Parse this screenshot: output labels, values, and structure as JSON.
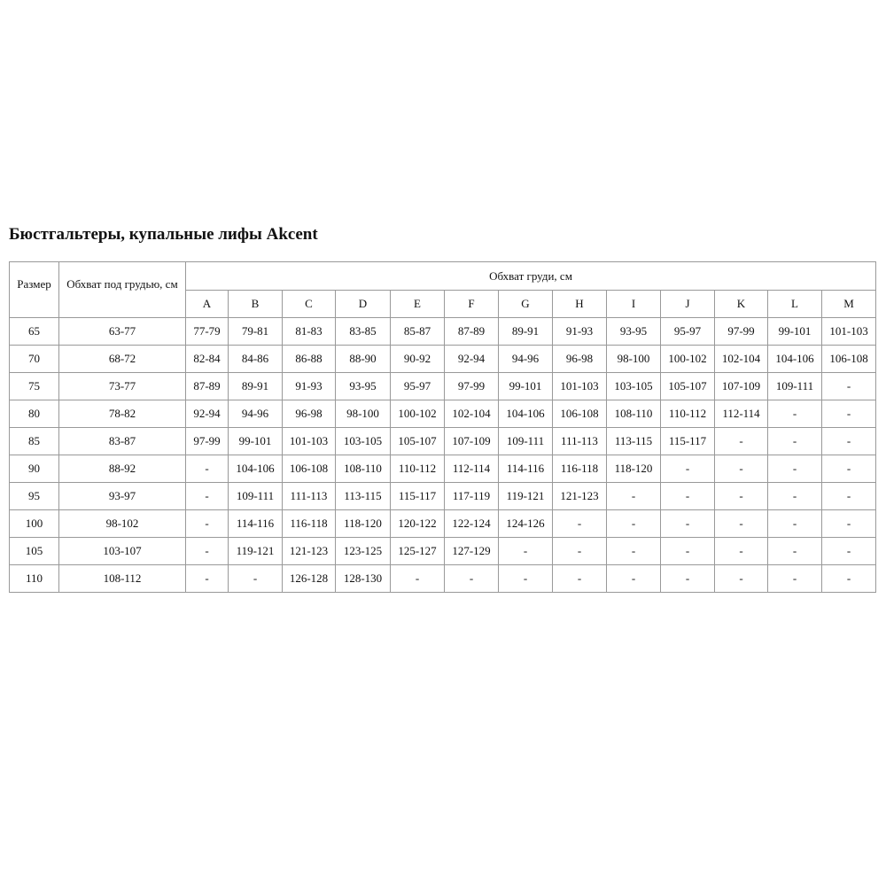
{
  "title": "Бюстгальтеры, купальные лифы Akcent",
  "headers": {
    "size": "Размер",
    "underbust": "Обхват под грудью, см",
    "bust": "Обхват груди, см",
    "cups": [
      "A",
      "B",
      "C",
      "D",
      "E",
      "F",
      "G",
      "H",
      "I",
      "J",
      "K",
      "L",
      "M"
    ]
  },
  "rows": [
    [
      "65",
      "63-77",
      "77-79",
      "79-81",
      "81-83",
      "83-85",
      "85-87",
      "87-89",
      "89-91",
      "91-93",
      "93-95",
      "95-97",
      "97-99",
      "99-101",
      "101-103"
    ],
    [
      "70",
      "68-72",
      "82-84",
      "84-86",
      "86-88",
      "88-90",
      "90-92",
      "92-94",
      "94-96",
      "96-98",
      "98-100",
      "100-102",
      "102-104",
      "104-106",
      "106-108"
    ],
    [
      "75",
      "73-77",
      "87-89",
      "89-91",
      "91-93",
      "93-95",
      "95-97",
      "97-99",
      "99-101",
      "101-103",
      "103-105",
      "105-107",
      "107-109",
      "109-111",
      "-"
    ],
    [
      "80",
      "78-82",
      "92-94",
      "94-96",
      "96-98",
      "98-100",
      "100-102",
      "102-104",
      "104-106",
      "106-108",
      "108-110",
      "110-112",
      "112-114",
      "-",
      "-"
    ],
    [
      "85",
      "83-87",
      "97-99",
      "99-101",
      "101-103",
      "103-105",
      "105-107",
      "107-109",
      "109-111",
      "111-113",
      "113-115",
      "115-117",
      "-",
      "-",
      "-"
    ],
    [
      "90",
      "88-92",
      "-",
      "104-106",
      "106-108",
      "108-110",
      "110-112",
      "112-114",
      "114-116",
      "116-118",
      "118-120",
      "-",
      "-",
      "-",
      "-"
    ],
    [
      "95",
      "93-97",
      "-",
      "109-111",
      "111-113",
      "113-115",
      "115-117",
      "117-119",
      "119-121",
      "121-123",
      "-",
      "-",
      "-",
      "-",
      "-"
    ],
    [
      "100",
      "98-102",
      "-",
      "114-116",
      "116-118",
      "118-120",
      "120-122",
      "122-124",
      "124-126",
      "-",
      "-",
      "-",
      "-",
      "-",
      "-"
    ],
    [
      "105",
      "103-107",
      "-",
      "119-121",
      "121-123",
      "123-125",
      "125-127",
      "127-129",
      "-",
      "-",
      "-",
      "-",
      "-",
      "-",
      "-"
    ],
    [
      "110",
      "108-112",
      "-",
      "-",
      "126-128",
      "128-130",
      "-",
      "-",
      "-",
      "-",
      "-",
      "-",
      "-",
      "-",
      "-"
    ]
  ]
}
